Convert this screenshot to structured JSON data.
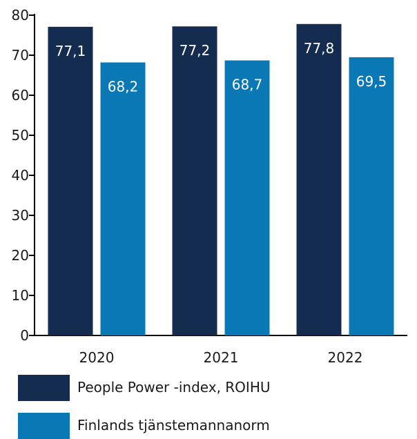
{
  "chart_data": {
    "type": "bar",
    "categories": [
      "2020",
      "2021",
      "2022"
    ],
    "series": [
      {
        "name": "People Power -index, ROIHU",
        "values": [
          77.1,
          77.2,
          77.8
        ],
        "value_labels": [
          "77,1",
          "77,2",
          "77,8"
        ],
        "color": "#142c4f"
      },
      {
        "name": "Finlands tjänstemannanorm",
        "values": [
          68.2,
          68.7,
          69.5
        ],
        "value_labels": [
          "68,2",
          "68,7",
          "69,5"
        ],
        "color": "#0a78b5"
      }
    ],
    "ylim": [
      0,
      80
    ],
    "yticks": [
      "0",
      "10",
      "20",
      "30",
      "40",
      "50",
      "60",
      "70",
      "80"
    ],
    "grid": false,
    "legend_position": "bottom-left"
  }
}
